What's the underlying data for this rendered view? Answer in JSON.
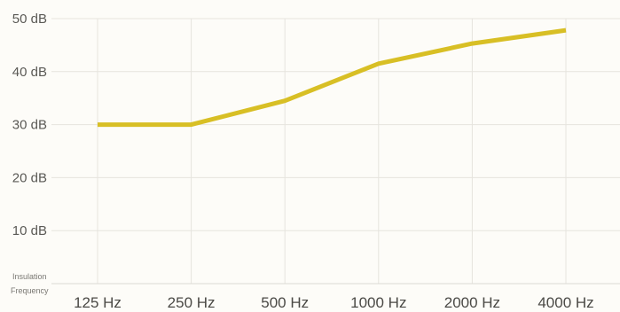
{
  "chart_data": {
    "type": "line",
    "categories": [
      "125 Hz",
      "250 Hz",
      "500 Hz",
      "1000 Hz",
      "2000 Hz",
      "4000 Hz"
    ],
    "series": [
      {
        "values": [
          30,
          30,
          34.5,
          41.5,
          45.3,
          47.8
        ],
        "color": "#d8bf25"
      }
    ],
    "yticks": [
      "10 dB",
      "20 dB",
      "30 dB",
      "40 dB",
      "50 dB"
    ],
    "ytick_values": [
      10,
      20,
      30,
      40,
      50
    ],
    "ylim": [
      0,
      50
    ],
    "ylabel": "Insulation",
    "xlabel": "Frequency",
    "grid": true,
    "legend": "none"
  }
}
